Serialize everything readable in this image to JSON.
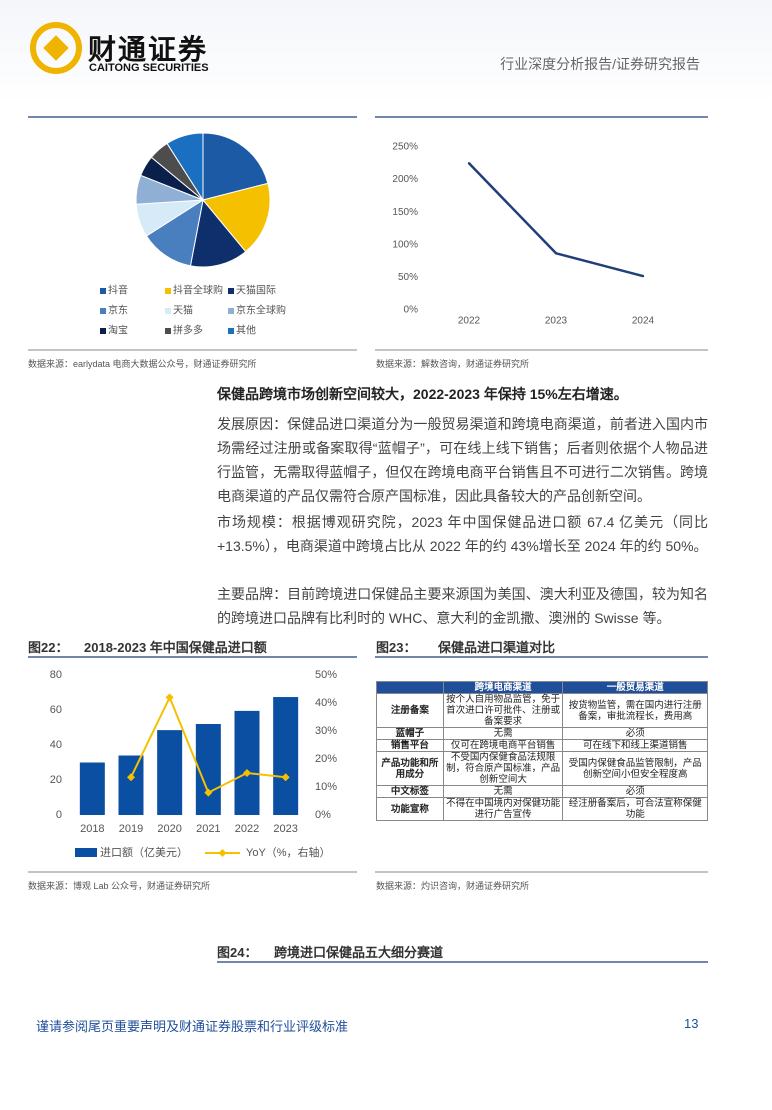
{
  "header": {
    "logo_cn": "财通证券",
    "logo_en": "CAITONG SECURITIES",
    "report_type": "行业深度分析报告/证券研究报告"
  },
  "chart_data": [
    {
      "type": "pie",
      "categories": [
        "抖音",
        "抖音全球购",
        "天猫国际",
        "京东",
        "天猫",
        "京东全球购",
        "淘宝",
        "拼多多",
        "其他"
      ],
      "values": [
        21,
        18,
        14,
        13,
        8,
        7,
        5,
        5,
        9
      ],
      "colors": [
        "#1c5aa6",
        "#f5c000",
        "#0e2f6b",
        "#4a7fbf",
        "#d6eaf8",
        "#8fb0d4",
        "#0a1f4a",
        "#4d4d4d",
        "#1b6fc0"
      ],
      "source": "数据来源：earlydata 电商大数据公众号，财通证券研究所"
    },
    {
      "type": "line",
      "categories": [
        "2022",
        "2023",
        "2024"
      ],
      "values": [
        225,
        87,
        52
      ],
      "color": "#1f3f7a",
      "ylim": [
        0,
        250
      ],
      "yticks": [
        {
          "value": 0,
          "label": "0%"
        },
        {
          "value": 50,
          "label": "50%"
        },
        {
          "value": 100,
          "label": "100%"
        },
        {
          "value": 150,
          "label": "150%"
        },
        {
          "value": 200,
          "label": "200%"
        },
        {
          "value": 250,
          "label": "250%"
        }
      ],
      "source": "数据来源：解数咨询，财通证券研究所"
    },
    {
      "type": "bar",
      "figure_label": "图22：",
      "title": "2018-2023 年中国保健品进口额",
      "categories": [
        "2018",
        "2019",
        "2020",
        "2021",
        "2022",
        "2023"
      ],
      "series": [
        {
          "name": "进口额（亿美元）",
          "type": "bar",
          "color": "#0b4fa3",
          "values": [
            30,
            34,
            48.5,
            52,
            59.5,
            67.4
          ]
        },
        {
          "name": "YoY（%，右轴）",
          "type": "line",
          "axis": "y2",
          "color": "#f5c000",
          "values": [
            null,
            13.5,
            42,
            8,
            15,
            13.5
          ]
        }
      ],
      "ylim": [
        0,
        80
      ],
      "yticks": [
        0,
        20,
        40,
        60,
        80
      ],
      "y2lim": [
        0,
        50
      ],
      "y2ticks": [
        {
          "value": 0,
          "label": "0%"
        },
        {
          "value": 10,
          "label": "10%"
        },
        {
          "value": 20,
          "label": "20%"
        },
        {
          "value": 30,
          "label": "30%"
        },
        {
          "value": 40,
          "label": "40%"
        },
        {
          "value": 50,
          "label": "50%"
        }
      ],
      "source": "数据来源：博观 Lab 公众号，财通证券研究所"
    }
  ],
  "paragraphs": [
    "保健品跨境市场创新空间较大，2022-2023 年保持 15%左右增速。",
    "发展原因：保健品进口渠道分为一般贸易渠道和跨境电商渠道，前者进入国内市场需经过注册或备案取得“蓝帽子”，可在线上线下销售；后者则依据个人物品进行监管，无需取得蓝帽子，但仅在跨境电商平台销售且不可进行二次销售。跨境电商渠道的产品仅需符合原产国标准，因此具备较大的产品创新空间。",
    "市场规模：根据博观研究院，2023 年中国保健品进口额 67.4 亿美元（同比+13.5%），电商渠道中跨境占比从 2022 年的约 43%增长至 2024 年的约 50%。",
    "主要品牌：目前跨境进口保健品主要来源国为美国、澳大利亚及德国，较为知名的跨境进口品牌有比利时的 WHC、意大利的金凯撒、澳洲的 Swisse 等。"
  ],
  "table": {
    "figure_label": "图23：",
    "title": "保健品进口渠道对比",
    "header": [
      "跨境电商渠道",
      "一般贸易渠道"
    ],
    "rows": [
      [
        "注册备案",
        "按个人自用物品监管，免于首次进口许可批件、注册或备案要求",
        "按货物监管，需在国内进行注册备案，审批流程长，费用高"
      ],
      [
        "蓝帽子",
        "无需",
        "必须"
      ],
      [
        "销售平台",
        "仅可在跨境电商平台销售",
        "可在线下和线上渠道销售"
      ],
      [
        "产品功能和所用成分",
        "不受国内保健食品法规限制，符合原产国标准，产品创新空间大",
        "受国内保健食品监管限制，产品创新空间小但安全程度高"
      ],
      [
        "中文标签",
        "无需",
        "必须"
      ],
      [
        "功能宣称",
        "不得在中国境内对保健功能进行广告宣传",
        "经注册备案后，可合法宣称保健功能"
      ]
    ],
    "source": "数据来源：灼识咨询，财通证券研究所"
  },
  "figure24": {
    "figure_label": "图24：",
    "title": "跨境进口保健品五大细分赛道"
  },
  "footer": {
    "disclaimer": "谨请参阅尾页重要声明及财通证券股票和行业评级标准",
    "page": "13"
  }
}
